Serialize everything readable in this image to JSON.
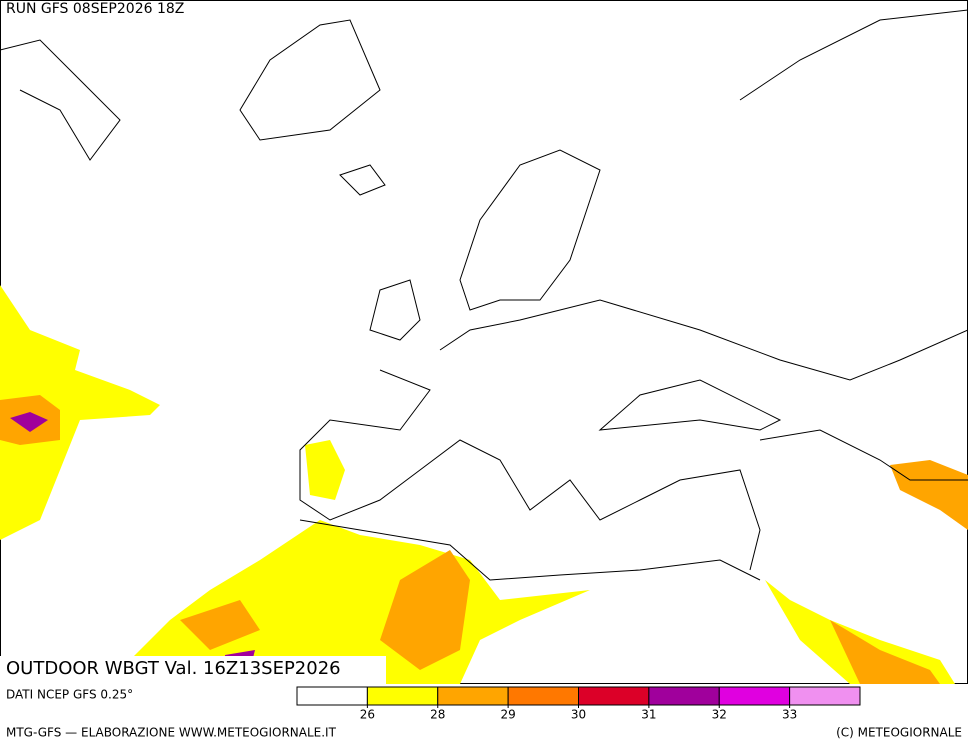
{
  "header": {
    "run": "RUN GFS 08SEP2026 18Z"
  },
  "title": "OUTDOOR WBGT Val. 16Z13SEP2026",
  "source": "DATI NCEP GFS 0.25°",
  "legend": {
    "colors": [
      "#ffffff",
      "#ffff00",
      "#ffa500",
      "#ff7800",
      "#dc0028",
      "#a0009c",
      "#e000e0",
      "#f090f0"
    ],
    "ticks": [
      26,
      28,
      29,
      30,
      31,
      32,
      33
    ]
  },
  "footer": {
    "left": "MTG-GFS — ELABORAZIONE WWW.METEOGIORNALE.IT",
    "right": "(C) METEOGIORNALE"
  }
}
